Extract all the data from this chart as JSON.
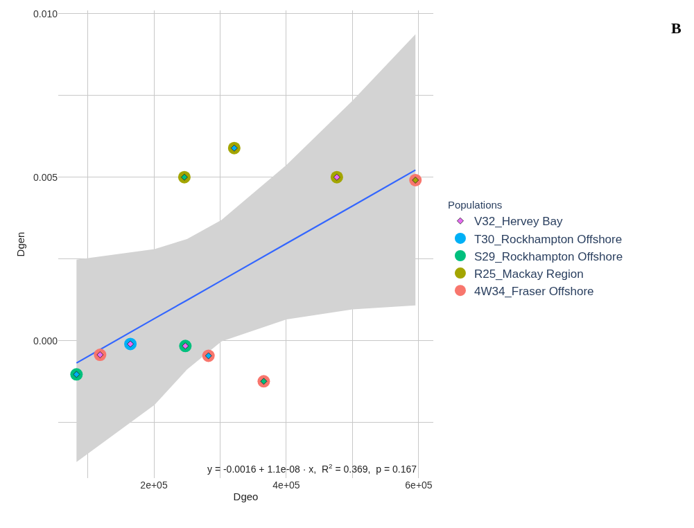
{
  "chart_data": {
    "type": "scatter",
    "xlabel": "Dgeo",
    "ylabel": "Dgen",
    "legend_title": "Populations",
    "legend": "right",
    "grid": true,
    "xlim": [
      55500,
      622000
    ],
    "ylim": [
      -0.0042,
      0.0101
    ],
    "xticks": [
      {
        "value": 100000,
        "label": null
      },
      {
        "value": 200000,
        "label": "2e+05"
      },
      {
        "value": 300000,
        "label": null
      },
      {
        "value": 400000,
        "label": "4e+05"
      },
      {
        "value": 500000,
        "label": null
      },
      {
        "value": 600000,
        "label": "6e+05"
      }
    ],
    "yticks": [
      {
        "value": -0.0025,
        "label": null
      },
      {
        "value": 0,
        "label": "0.000"
      },
      {
        "value": 0.0025,
        "label": null
      },
      {
        "value": 0.005,
        "label": "0.005"
      },
      {
        "value": 0.0075,
        "label": null
      },
      {
        "value": 0.01,
        "label": "0.010"
      }
    ],
    "series": [
      {
        "type": "line",
        "color": "#3366ff",
        "marker": "none",
        "x": [
          83100,
          201000,
          250000,
          302000,
          400000,
          500000,
          595000
        ],
        "values": [
          -0.00068,
          0.00068,
          0.00124,
          0.00184,
          0.00297,
          0.00412,
          0.00522
        ],
        "lower": [
          -0.00371,
          -0.00196,
          -0.00088,
          -2e-05,
          0.00065,
          0.00096,
          0.00108
        ],
        "upper": [
          0.00248,
          0.0028,
          0.00311,
          0.00369,
          0.00537,
          0.00734,
          0.00937
        ]
      },
      {
        "name": "4W34_Fraser Offshore",
        "color": "#f8766d",
        "marker": "circle",
        "x": [
          118700,
          282400,
          365900,
          595000
        ],
        "values": [
          -0.00043,
          -0.00046,
          -0.00124,
          0.00491
        ]
      },
      {
        "name": "R25_Mackay Region",
        "color": "#a3a500",
        "marker": "circle",
        "x": [
          246000,
          321300,
          476300
        ],
        "values": [
          0.005,
          0.00589,
          0.005
        ]
      },
      {
        "name": "S29_Rockhampton Offshore",
        "color": "#00bf7d",
        "marker": "circle",
        "x": [
          83100,
          247500
        ],
        "values": [
          -0.00103,
          -0.00016
        ]
      },
      {
        "name": "T30_Rockhampton Offshore",
        "color": "#00b0f6",
        "marker": "circle",
        "x": [
          164500
        ],
        "values": [
          -0.0001
        ]
      },
      {
        "color": "#00b0f6",
        "marker": "diamond",
        "x": [
          83100,
          321300,
          282400
        ],
        "values": [
          -0.00103,
          0.00589,
          -0.00046
        ]
      },
      {
        "color": "#00bf7d",
        "marker": "diamond",
        "x": [
          246000,
          365900
        ],
        "values": [
          0.005,
          -0.00124
        ]
      },
      {
        "color": "#a3a500",
        "marker": "diamond",
        "x": [
          595000
        ],
        "values": [
          0.00491
        ]
      },
      {
        "name": "V32_Hervey Bay",
        "color": "#e76bf3",
        "marker": "diamond",
        "x": [
          118700,
          164500,
          247500,
          476300
        ],
        "values": [
          -0.00043,
          -0.0001,
          -0.00016,
          0.005
        ]
      }
    ],
    "annotations": [
      {
        "text": "y = -0.0016 + 1.1e-08 · x,  R$^{2}$ = 0.369,  p = 0.167"
      },
      "B"
    ]
  }
}
